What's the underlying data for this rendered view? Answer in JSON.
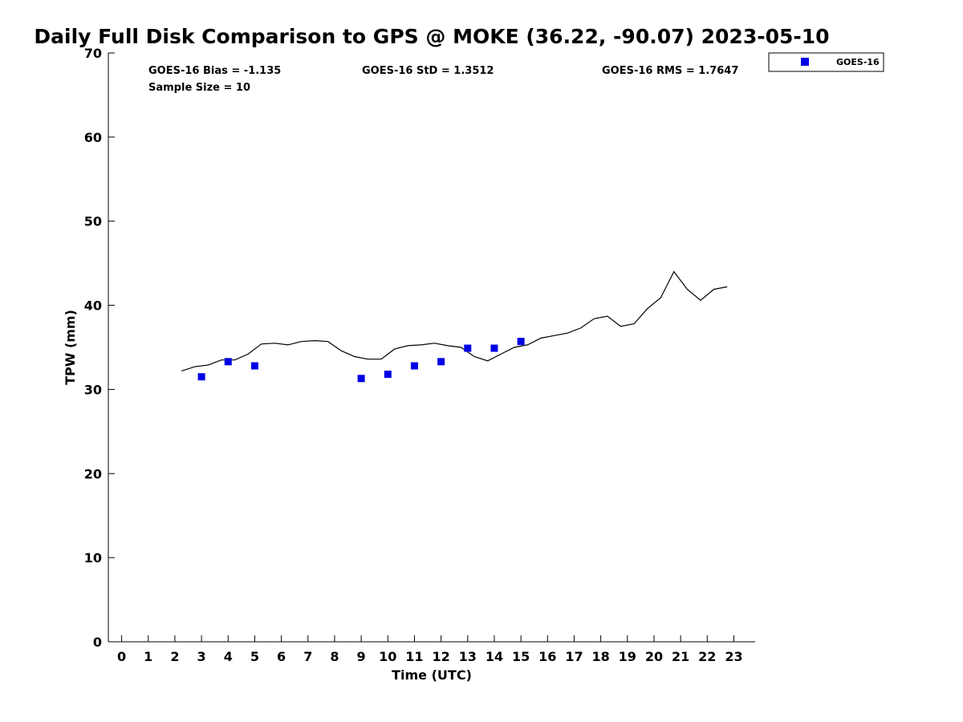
{
  "chart_data": {
    "type": "line",
    "title": "Daily Full Disk Comparison to GPS @ MOKE (36.22, -90.07) 2023-05-10",
    "xlabel": "Time (UTC)",
    "ylabel": "TPW (mm)",
    "xlim": [
      -0.5,
      23.8
    ],
    "ylim": [
      0,
      70
    ],
    "x_ticks": [
      "0",
      "1",
      "2",
      "3",
      "4",
      "5",
      "6",
      "7",
      "8",
      "9",
      "10",
      "11",
      "12",
      "13",
      "14",
      "15",
      "16",
      "17",
      "18",
      "19",
      "20",
      "21",
      "22",
      "23"
    ],
    "y_ticks": [
      "0",
      "10",
      "20",
      "30",
      "40",
      "50",
      "60",
      "70"
    ],
    "grid": false,
    "legend": {
      "position": "top-right",
      "entries": [
        "GOES-16"
      ]
    },
    "stats": {
      "bias": "GOES-16 Bias = -1.135",
      "std": "GOES-16 StD = 1.3512",
      "rms": "GOES-16 RMS = 1.7647",
      "sample_size": "Sample Size = 10"
    },
    "series": [
      {
        "kind": "line",
        "color": "#000000",
        "x": [
          2.25,
          2.75,
          3.25,
          3.75,
          4.25,
          4.75,
          5.25,
          5.75,
          6.25,
          6.75,
          7.25,
          7.75,
          8.25,
          8.75,
          9.25,
          9.75,
          10.25,
          10.75,
          11.25,
          11.75,
          12.25,
          12.75,
          13.25,
          13.75,
          14.25,
          14.75,
          15.25,
          15.75,
          16.25,
          16.75,
          17.25,
          17.75,
          18.25,
          18.75,
          19.25,
          19.75,
          20.25,
          20.75,
          21.25,
          21.75,
          22.25,
          22.75
        ],
        "y": [
          32.2,
          32.7,
          32.9,
          33.5,
          33.5,
          34.2,
          35.4,
          35.5,
          35.3,
          35.7,
          35.8,
          35.7,
          34.6,
          33.9,
          33.6,
          33.6,
          34.8,
          35.2,
          35.3,
          35.5,
          35.2,
          35.0,
          33.9,
          33.4,
          34.2,
          35.0,
          35.3,
          36.1,
          36.4,
          36.7,
          37.3,
          38.4,
          38.7,
          37.5,
          37.8,
          39.6,
          40.9,
          44.0,
          41.9,
          40.6,
          41.9,
          42.2
        ]
      },
      {
        "kind": "scatter",
        "name": "GOES-16",
        "color": "#0000e6",
        "x": [
          3,
          4,
          5,
          9,
          10,
          11,
          12,
          13,
          14,
          15
        ],
        "y": [
          31.5,
          33.3,
          32.8,
          31.3,
          31.8,
          32.8,
          33.3,
          34.9,
          34.9,
          35.7
        ]
      }
    ]
  }
}
